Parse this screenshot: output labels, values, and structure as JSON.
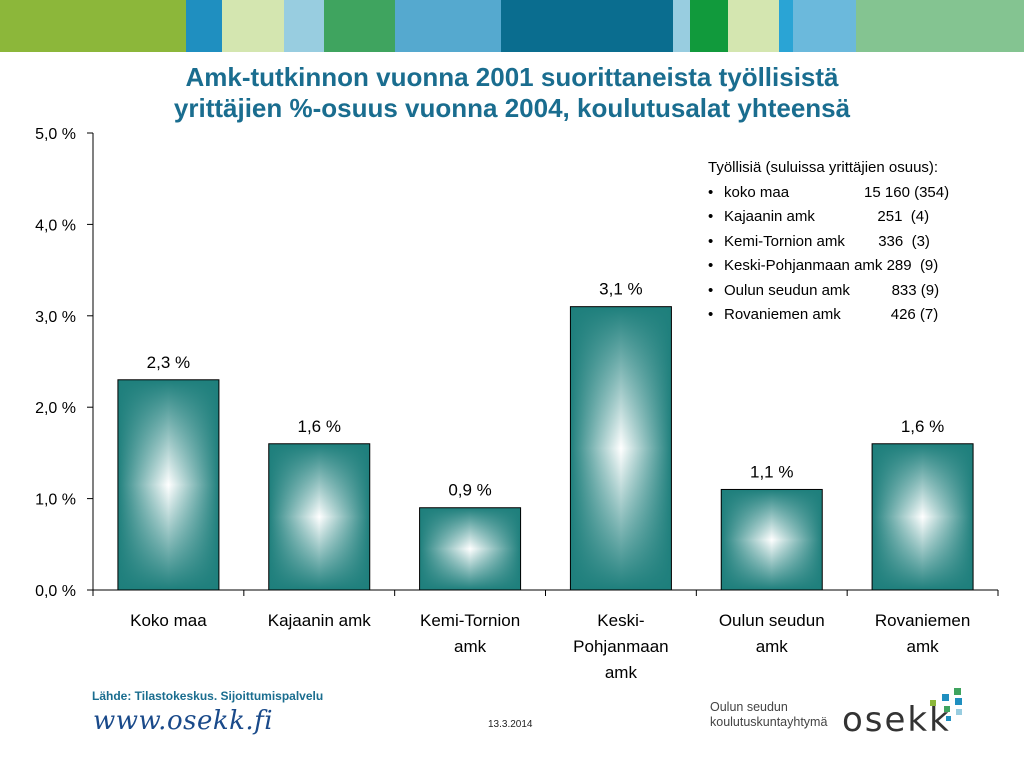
{
  "title": {
    "line1": "Amk-tutkinnon vuonna 2001 suorittaneista työllisistä",
    "line2": "yrittäjien %-osuus vuonna 2004, koulutusalat yhteensä"
  },
  "chart_data": {
    "type": "bar",
    "categories": [
      [
        "Koko maa"
      ],
      [
        "Kajaanin amk"
      ],
      [
        "Kemi-Tornion",
        "amk"
      ],
      [
        "Keski-",
        "Pohjanmaan",
        "amk"
      ],
      [
        "Oulun seudun",
        "amk"
      ],
      [
        "Rovaniemen",
        "amk"
      ]
    ],
    "values": [
      2.3,
      1.6,
      0.9,
      3.1,
      1.1,
      1.6
    ],
    "data_labels": [
      "2,3 %",
      "1,6 %",
      "0,9 %",
      "3,1 %",
      "1,1 %",
      "1,6 %"
    ],
    "y_ticks": [
      {
        "value": 0,
        "label": "0,0 %"
      },
      {
        "value": 1,
        "label": "1,0 %"
      },
      {
        "value": 2,
        "label": "2,0 %"
      },
      {
        "value": 3,
        "label": "3,0 %"
      },
      {
        "value": 4,
        "label": "4,0 %"
      },
      {
        "value": 5,
        "label": "5,0 %"
      }
    ],
    "ylim": [
      0,
      5
    ],
    "grid": false,
    "bar_color": "#1e7f7c"
  },
  "legend": {
    "title": "Työllisiä (suluissa yrittäjien osuus):",
    "items": [
      "koko maa                  15 160 (354)",
      "Kajaanin amk               251  (4)",
      "Kemi-Tornion amk        336  (3)",
      "Keski-Pohjanmaan amk 289  (9)",
      "Oulun seudun amk          833 (9)",
      "Rovaniemen amk            426 (7)"
    ]
  },
  "footer": {
    "source": "Lähde: Tilastokeskus. Sijoittumispalvelu",
    "website": "www.osekk.fi",
    "date": "13.3.2014",
    "org_line1": "Oulun seudun",
    "org_line2": "koulutuskuntayhtymä",
    "brand": "osekk"
  },
  "colors": {
    "title": "#1a6d8f",
    "topbar": [
      "#8cb73a",
      "#1f8fc0",
      "#d4e6b0",
      "#98cde0",
      "#3fa45f",
      "#55a9cf",
      "#0a6d8f",
      "#98cde0",
      "#119a3c",
      "#d4e6b0",
      "#2aa4d5",
      "#6bb9dc",
      "#84c491"
    ]
  }
}
